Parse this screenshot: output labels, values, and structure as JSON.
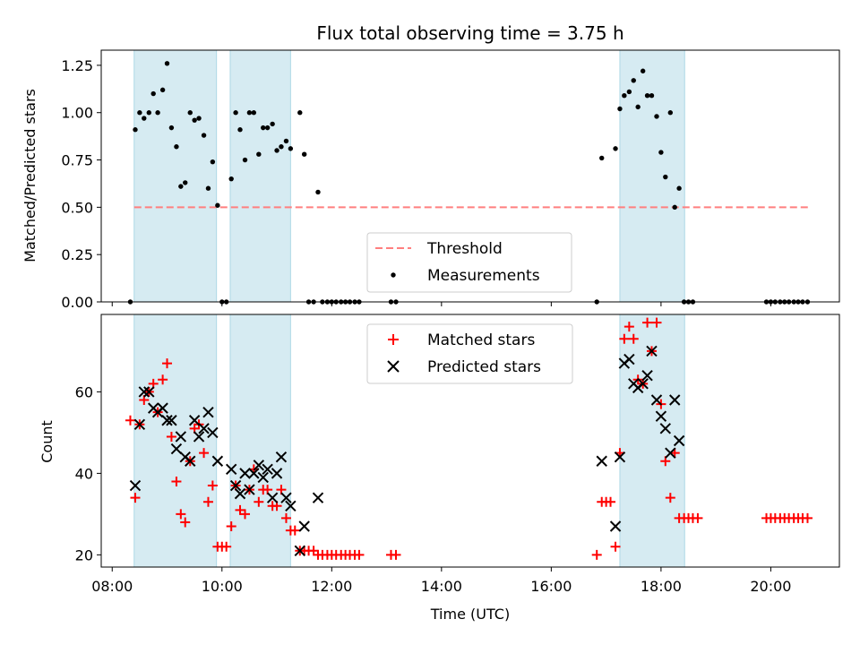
{
  "chart_data": [
    {
      "type": "scatter",
      "title": "Flux total observing time = 3.75 h",
      "ylabel": "Matched/Predicted stars",
      "xlabel": "",
      "xlim": [
        7.8,
        21.25
      ],
      "ylim": [
        0,
        1.33
      ],
      "yticks": [
        0,
        0.25,
        0.5,
        0.75,
        1.0,
        1.25
      ],
      "ytick_labels": [
        "0.00",
        "0.25",
        "0.50",
        "0.75",
        "1.00",
        "1.25"
      ],
      "shaded_intervals": [
        [
          8.4,
          9.9
        ],
        [
          10.15,
          11.25
        ],
        [
          17.25,
          18.43
        ]
      ],
      "shade_color": "#add8e6",
      "legend_position": "lower center",
      "legend": [
        {
          "label": "Threshold",
          "style": "dashed-line",
          "color": "#ff7f7f"
        },
        {
          "label": "Measurements",
          "style": "dot",
          "color": "#000000"
        }
      ],
      "threshold": {
        "name": "Threshold",
        "value": 0.5,
        "x_range": [
          8.4,
          20.7
        ],
        "color": "#ff7f7f"
      },
      "series": [
        {
          "name": "Measurements",
          "color": "#000000",
          "points": [
            [
              8.33,
              0.0
            ],
            [
              8.42,
              0.91
            ],
            [
              8.5,
              1.0
            ],
            [
              8.58,
              0.97
            ],
            [
              8.67,
              1.0
            ],
            [
              8.75,
              1.1
            ],
            [
              8.83,
              1.0
            ],
            [
              8.92,
              1.12
            ],
            [
              9.0,
              1.26
            ],
            [
              9.08,
              0.92
            ],
            [
              9.17,
              0.82
            ],
            [
              9.25,
              0.61
            ],
            [
              9.33,
              0.63
            ],
            [
              9.42,
              1.0
            ],
            [
              9.5,
              0.96
            ],
            [
              9.58,
              0.97
            ],
            [
              9.67,
              0.88
            ],
            [
              9.75,
              0.6
            ],
            [
              9.83,
              0.74
            ],
            [
              9.92,
              0.51
            ],
            [
              10.0,
              0.0
            ],
            [
              10.08,
              0.0
            ],
            [
              10.17,
              0.65
            ],
            [
              10.25,
              1.0
            ],
            [
              10.33,
              0.91
            ],
            [
              10.42,
              0.75
            ],
            [
              10.5,
              1.0
            ],
            [
              10.58,
              1.0
            ],
            [
              10.67,
              0.78
            ],
            [
              10.75,
              0.92
            ],
            [
              10.83,
              0.92
            ],
            [
              10.92,
              0.94
            ],
            [
              11.0,
              0.8
            ],
            [
              11.08,
              0.82
            ],
            [
              11.17,
              0.85
            ],
            [
              11.25,
              0.81
            ],
            [
              11.42,
              1.0
            ],
            [
              11.5,
              0.78
            ],
            [
              11.58,
              0.0
            ],
            [
              11.67,
              0.0
            ],
            [
              11.75,
              0.58
            ],
            [
              11.83,
              0.0
            ],
            [
              11.92,
              0.0
            ],
            [
              12.0,
              0.0
            ],
            [
              12.08,
              0.0
            ],
            [
              12.17,
              0.0
            ],
            [
              12.25,
              0.0
            ],
            [
              12.33,
              0.0
            ],
            [
              12.42,
              0.0
            ],
            [
              12.5,
              0.0
            ],
            [
              13.08,
              0.0
            ],
            [
              13.17,
              0.0
            ],
            [
              16.83,
              0.0
            ],
            [
              16.92,
              0.76
            ],
            [
              17.17,
              0.81
            ],
            [
              17.25,
              1.02
            ],
            [
              17.33,
              1.09
            ],
            [
              17.42,
              1.11
            ],
            [
              17.5,
              1.17
            ],
            [
              17.58,
              1.03
            ],
            [
              17.67,
              1.22
            ],
            [
              17.75,
              1.09
            ],
            [
              17.83,
              1.09
            ],
            [
              17.92,
              0.98
            ],
            [
              18.0,
              0.79
            ],
            [
              18.08,
              0.66
            ],
            [
              18.17,
              1.0
            ],
            [
              18.25,
              0.5
            ],
            [
              18.33,
              0.6
            ],
            [
              18.42,
              0.0
            ],
            [
              18.5,
              0.0
            ],
            [
              18.58,
              0.0
            ],
            [
              19.92,
              0.0
            ],
            [
              20.0,
              0.0
            ],
            [
              20.08,
              0.0
            ],
            [
              20.17,
              0.0
            ],
            [
              20.25,
              0.0
            ],
            [
              20.33,
              0.0
            ],
            [
              20.42,
              0.0
            ],
            [
              20.5,
              0.0
            ],
            [
              20.58,
              0.0
            ],
            [
              20.67,
              0.0
            ]
          ]
        }
      ]
    },
    {
      "type": "scatter",
      "title": "",
      "ylabel": "Count",
      "xlabel": "Time (UTC)",
      "xlim": [
        7.8,
        21.25
      ],
      "ylim": [
        17,
        79
      ],
      "yticks": [
        20,
        40,
        60
      ],
      "ytick_labels": [
        "20",
        "40",
        "60"
      ],
      "xticks": [
        8,
        10,
        12,
        14,
        16,
        18,
        20
      ],
      "xtick_labels": [
        "08:00",
        "10:00",
        "12:00",
        "14:00",
        "16:00",
        "18:00",
        "20:00"
      ],
      "shaded_intervals": [
        [
          8.4,
          9.9
        ],
        [
          10.15,
          11.25
        ],
        [
          17.25,
          18.43
        ]
      ],
      "shade_color": "#add8e6",
      "legend_position": "upper center",
      "legend": [
        {
          "label": "Matched stars",
          "style": "plus",
          "color": "#ff0000"
        },
        {
          "label": "Predicted stars",
          "style": "x",
          "color": "#000000"
        }
      ],
      "series": [
        {
          "name": "Matched stars",
          "color": "#ff0000",
          "marker": "plus",
          "points": [
            [
              8.33,
              53
            ],
            [
              8.42,
              34
            ],
            [
              8.5,
              52
            ],
            [
              8.58,
              58
            ],
            [
              8.67,
              60
            ],
            [
              8.75,
              62
            ],
            [
              8.83,
              55
            ],
            [
              8.92,
              63
            ],
            [
              9.0,
              67
            ],
            [
              9.08,
              49
            ],
            [
              9.17,
              38
            ],
            [
              9.25,
              30
            ],
            [
              9.33,
              28
            ],
            [
              9.42,
              43
            ],
            [
              9.5,
              51
            ],
            [
              9.58,
              52
            ],
            [
              9.67,
              45
            ],
            [
              9.75,
              33
            ],
            [
              9.83,
              37
            ],
            [
              9.92,
              22
            ],
            [
              10.0,
              22
            ],
            [
              10.08,
              22
            ],
            [
              10.17,
              27
            ],
            [
              10.25,
              37
            ],
            [
              10.33,
              31
            ],
            [
              10.42,
              30
            ],
            [
              10.5,
              36
            ],
            [
              10.58,
              41
            ],
            [
              10.67,
              33
            ],
            [
              10.75,
              36
            ],
            [
              10.83,
              36
            ],
            [
              10.92,
              32
            ],
            [
              11.0,
              32
            ],
            [
              11.08,
              36
            ],
            [
              11.17,
              29
            ],
            [
              11.25,
              26
            ],
            [
              11.33,
              26
            ],
            [
              11.42,
              21
            ],
            [
              11.5,
              21
            ],
            [
              11.58,
              21
            ],
            [
              11.67,
              21
            ],
            [
              11.75,
              20
            ],
            [
              11.83,
              20
            ],
            [
              11.92,
              20
            ],
            [
              12.0,
              20
            ],
            [
              12.08,
              20
            ],
            [
              12.17,
              20
            ],
            [
              12.25,
              20
            ],
            [
              12.33,
              20
            ],
            [
              12.42,
              20
            ],
            [
              12.5,
              20
            ],
            [
              13.08,
              20
            ],
            [
              13.17,
              20
            ],
            [
              16.83,
              20
            ],
            [
              16.92,
              33
            ],
            [
              17.0,
              33
            ],
            [
              17.08,
              33
            ],
            [
              17.17,
              22
            ],
            [
              17.25,
              45
            ],
            [
              17.33,
              73
            ],
            [
              17.42,
              76
            ],
            [
              17.5,
              73
            ],
            [
              17.58,
              63
            ],
            [
              17.67,
              62
            ],
            [
              17.75,
              77
            ],
            [
              17.83,
              70
            ],
            [
              17.92,
              77
            ],
            [
              18.0,
              57
            ],
            [
              18.08,
              43
            ],
            [
              18.17,
              34
            ],
            [
              18.25,
              45
            ],
            [
              18.33,
              29
            ],
            [
              18.42,
              29
            ],
            [
              18.5,
              29
            ],
            [
              18.58,
              29
            ],
            [
              18.67,
              29
            ],
            [
              19.92,
              29
            ],
            [
              20.0,
              29
            ],
            [
              20.08,
              29
            ],
            [
              20.17,
              29
            ],
            [
              20.25,
              29
            ],
            [
              20.33,
              29
            ],
            [
              20.42,
              29
            ],
            [
              20.5,
              29
            ],
            [
              20.58,
              29
            ],
            [
              20.67,
              29
            ]
          ]
        },
        {
          "name": "Predicted stars",
          "color": "#000000",
          "marker": "x",
          "points": [
            [
              8.42,
              37
            ],
            [
              8.5,
              52
            ],
            [
              8.58,
              60
            ],
            [
              8.67,
              60
            ],
            [
              8.75,
              56
            ],
            [
              8.83,
              55
            ],
            [
              8.92,
              56
            ],
            [
              9.0,
              53
            ],
            [
              9.08,
              53
            ],
            [
              9.17,
              46
            ],
            [
              9.25,
              49
            ],
            [
              9.33,
              44
            ],
            [
              9.42,
              43
            ],
            [
              9.5,
              53
            ],
            [
              9.58,
              49
            ],
            [
              9.67,
              51
            ],
            [
              9.75,
              55
            ],
            [
              9.83,
              50
            ],
            [
              9.92,
              43
            ],
            [
              10.17,
              41
            ],
            [
              10.25,
              37
            ],
            [
              10.33,
              35
            ],
            [
              10.42,
              40
            ],
            [
              10.5,
              36
            ],
            [
              10.58,
              40
            ],
            [
              10.67,
              42
            ],
            [
              10.75,
              39
            ],
            [
              10.83,
              41
            ],
            [
              10.92,
              34
            ],
            [
              11.0,
              40
            ],
            [
              11.08,
              44
            ],
            [
              11.17,
              34
            ],
            [
              11.25,
              32
            ],
            [
              11.42,
              21
            ],
            [
              11.5,
              27
            ],
            [
              11.75,
              34
            ],
            [
              16.92,
              43
            ],
            [
              17.17,
              27
            ],
            [
              17.25,
              44
            ],
            [
              17.33,
              67
            ],
            [
              17.42,
              68
            ],
            [
              17.5,
              62
            ],
            [
              17.58,
              61
            ],
            [
              17.67,
              62
            ],
            [
              17.75,
              64
            ],
            [
              17.83,
              70
            ],
            [
              17.92,
              58
            ],
            [
              18.0,
              54
            ],
            [
              18.08,
              51
            ],
            [
              18.17,
              45
            ],
            [
              18.25,
              58
            ],
            [
              18.33,
              48
            ]
          ]
        }
      ]
    }
  ]
}
